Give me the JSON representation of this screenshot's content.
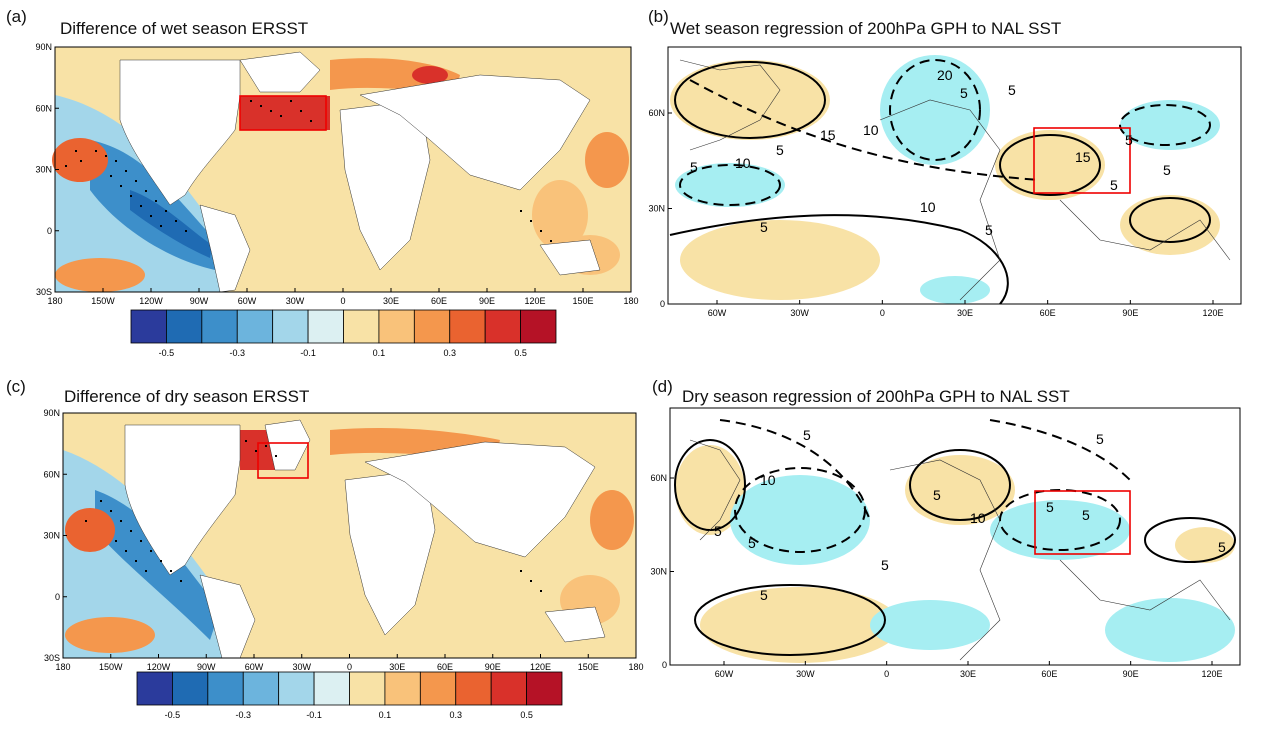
{
  "figure": {
    "panels": [
      {
        "id": "a",
        "tag": "(a)",
        "title": "Difference of wet season ERSST",
        "lat_labels": [
          "90N",
          "60N",
          "30N",
          "0",
          "30S"
        ],
        "lon_labels": [
          "180",
          "150W",
          "120W",
          "90W",
          "60W",
          "30W",
          "0",
          "30E",
          "60E",
          "90E",
          "120E",
          "150E",
          "180"
        ],
        "colorbar": {
          "colors": [
            "#2b3b9c",
            "#1f6bb3",
            "#3d8fca",
            "#6cb4dd",
            "#a3d6ea",
            "#dcf0f2",
            "#f8e2a6",
            "#f9c27a",
            "#f4974d",
            "#ea6330",
            "#d9312a",
            "#b51226"
          ],
          "tick_labels": [
            "-0.5",
            "-0.3",
            "-0.1",
            "0.1",
            "0.3",
            "0.5"
          ]
        },
        "box": {
          "lon": [
            -70,
            -5
          ],
          "lat": [
            50,
            70
          ]
        }
      },
      {
        "id": "b",
        "tag": "(b)",
        "title": "Wet season regression of 200hPa GPH to NAL SST",
        "lat_labels": [
          "60N",
          "30N",
          "0"
        ],
        "lon_labels": [
          "60W",
          "30W",
          "0",
          "30E",
          "60E",
          "90E",
          "120E"
        ],
        "contour_labels": [
          "5",
          "10",
          "15",
          "20",
          "5",
          "10",
          "5",
          "5",
          "15",
          "5",
          "5",
          "10",
          "5",
          "5",
          "5"
        ],
        "box": {
          "lon": [
            55,
            90
          ],
          "lat": [
            35,
            55
          ]
        }
      },
      {
        "id": "c",
        "tag": "(c)",
        "title": "Difference of dry season ERSST",
        "lat_labels": [
          "90N",
          "60N",
          "30N",
          "0",
          "30S"
        ],
        "lon_labels": [
          "180",
          "150W",
          "120W",
          "90W",
          "60W",
          "30W",
          "0",
          "30E",
          "60E",
          "90E",
          "120E",
          "150E",
          "180"
        ],
        "colorbar": {
          "colors": [
            "#2b3b9c",
            "#1f6bb3",
            "#3d8fca",
            "#6cb4dd",
            "#a3d6ea",
            "#dcf0f2",
            "#f8e2a6",
            "#f9c27a",
            "#f4974d",
            "#ea6330",
            "#d9312a",
            "#b51226"
          ],
          "tick_labels": [
            "-0.5",
            "-0.3",
            "-0.1",
            "0.1",
            "0.3",
            "0.5"
          ]
        },
        "box": {
          "lon": [
            -45,
            -10
          ],
          "lat": [
            60,
            75
          ]
        }
      },
      {
        "id": "d",
        "tag": "(d)",
        "title": "Dry season regression of 200hPa GPH to NAL SST",
        "lat_labels": [
          "60N",
          "30N",
          "0"
        ],
        "lon_labels": [
          "60W",
          "30W",
          "0",
          "30E",
          "60E",
          "90E",
          "120E"
        ],
        "contour_labels": [
          "5",
          "10",
          "5",
          "5",
          "5",
          "10",
          "5",
          "5",
          "5",
          "5",
          "5",
          "5"
        ],
        "box": {
          "lon": [
            55,
            90
          ],
          "lat": [
            35,
            55
          ]
        }
      }
    ]
  }
}
